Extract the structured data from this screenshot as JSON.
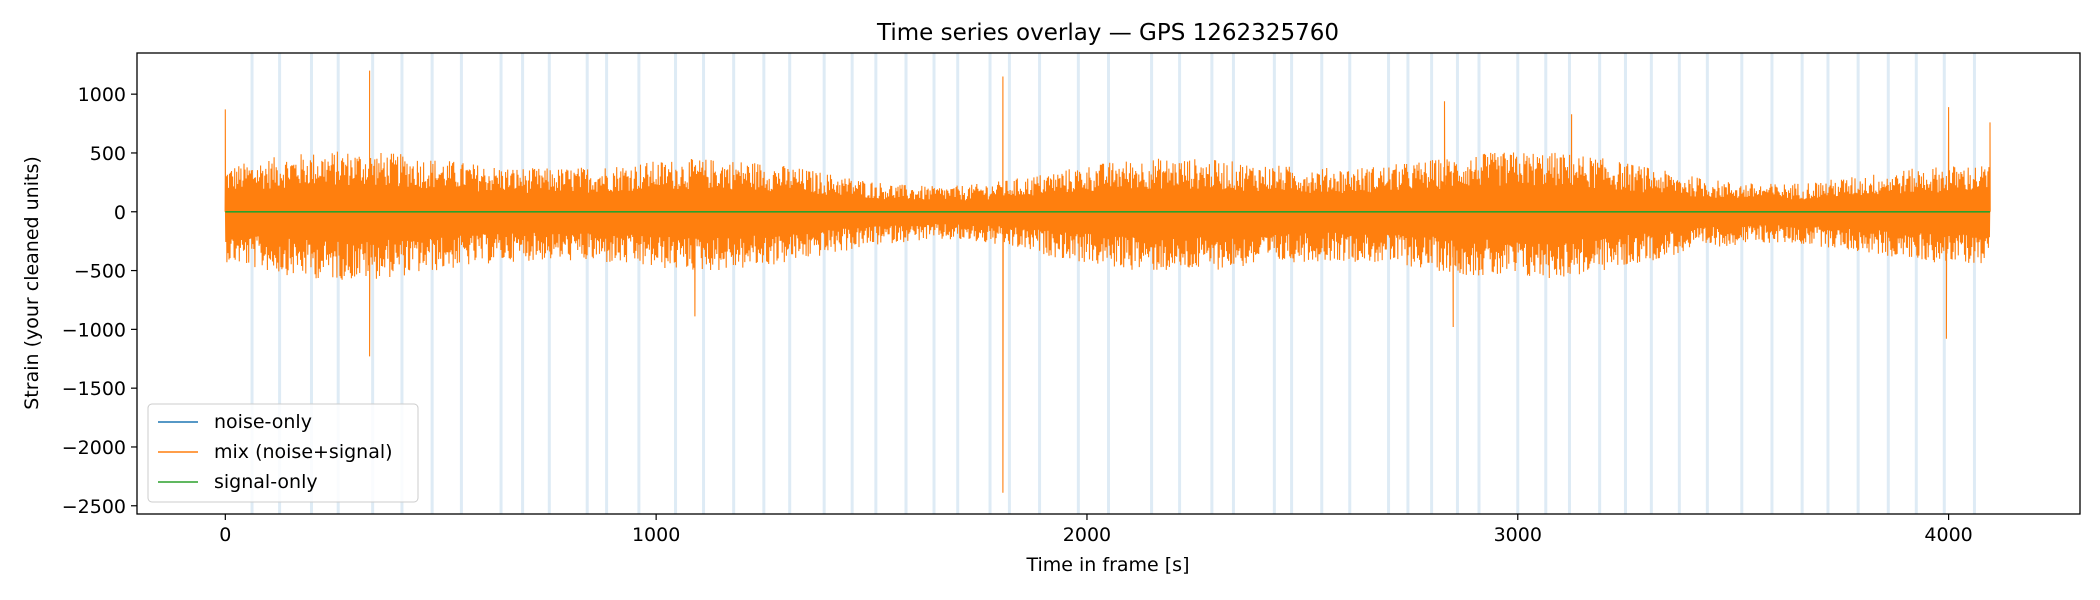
{
  "chart_data": {
    "type": "line",
    "title": "Time series overlay — GPS 1262325760",
    "xlabel": "Time in frame [s]",
    "ylabel": "Strain (your cleaned units)",
    "xlim": [
      -205,
      4305
    ],
    "ylim": [
      -2570,
      1350
    ],
    "x_ticks": [
      0,
      1000,
      2000,
      3000,
      4000
    ],
    "y_ticks": [
      1000,
      500,
      0,
      -500,
      -1000,
      -1500,
      -2000,
      -2500
    ],
    "x_tick_labels": [
      "0",
      "1000",
      "2000",
      "3000",
      "4000"
    ],
    "y_tick_labels": [
      "1000",
      "500",
      "0",
      "−500",
      "−1000",
      "−1500",
      "−2000",
      "−2500"
    ],
    "grid": false,
    "legend": "lower-left",
    "series": [
      {
        "name": "noise-only",
        "color": "#1f77b4",
        "x": [
          0,
          4096
        ],
        "y": [
          0,
          0
        ]
      },
      {
        "name": "mix (noise+signal)",
        "color": "#ff7f0e",
        "x_range": [
          0,
          4096
        ],
        "band_upper_typical": 420,
        "band_lower_typical": -470,
        "peaks": [
          {
            "x": 0,
            "y": 870
          },
          {
            "x": 335,
            "y": 1200
          },
          {
            "x": 335,
            "y": -1230
          },
          {
            "x": 1805,
            "y": 1150
          },
          {
            "x": 1805,
            "y": -2390
          },
          {
            "x": 2830,
            "y": 940
          },
          {
            "x": 3125,
            "y": 830
          },
          {
            "x": 4000,
            "y": 890
          },
          {
            "x": 3995,
            "y": -1080
          },
          {
            "x": 2850,
            "y": -980
          },
          {
            "x": 1090,
            "y": -890
          },
          {
            "x": 4096,
            "y": 760
          }
        ]
      },
      {
        "name": "signal-only",
        "color": "#2ca02c",
        "x": [
          0,
          4096
        ],
        "y": [
          0,
          0
        ]
      }
    ],
    "shaded_intervals_x": [
      62,
      126,
      200,
      262,
      342,
      410,
      480,
      548,
      640,
      690,
      752,
      840,
      885,
      960,
      1045,
      1110,
      1180,
      1250,
      1310,
      1390,
      1455,
      1510,
      1580,
      1645,
      1700,
      1775,
      1820,
      1890,
      1980,
      2050,
      2150,
      2215,
      2290,
      2340,
      2435,
      2475,
      2545,
      2610,
      2700,
      2745,
      2800,
      2860,
      2910,
      3000,
      3065,
      3120,
      3190,
      3250,
      3310,
      3375,
      3440,
      3520,
      3590,
      3660,
      3720,
      3790,
      3860,
      3925,
      3990,
      4060
    ]
  }
}
